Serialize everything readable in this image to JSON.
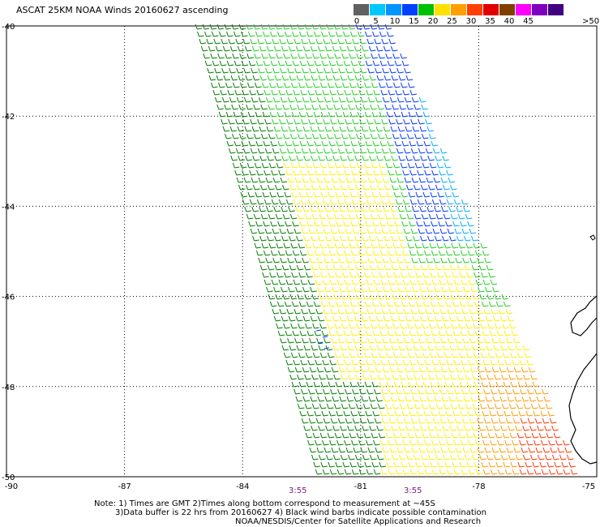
{
  "title": "ASCAT 25KM NOAA Winds 20160627 ascending",
  "legend": {
    "unit_label": ">50 knots",
    "ticks": [
      "0",
      "5",
      "10",
      "15",
      "20",
      "25",
      "30",
      "35",
      "40",
      "45"
    ],
    "colors": [
      "#606060",
      "#00c8ff",
      "#0096ff",
      "#0040ff",
      "#00c000",
      "#ffe000",
      "#ffa000",
      "#ff4000",
      "#e00000",
      "#804000",
      "#ff00ff",
      "#8000c0",
      "#400080"
    ]
  },
  "axes": {
    "x_ticks": [
      "-90",
      "-87",
      "-84",
      "-81",
      "-78",
      "-75"
    ],
    "y_ticks": [
      "-40",
      "-42",
      "-44",
      "-46",
      "-48",
      "-50"
    ]
  },
  "times": [
    "3:55",
    "3:55"
  ],
  "notes": {
    "line1": "Note: 1) Times are GMT 2)Times along bottom correspond to measurement at ~45S",
    "line2": "3)Data buffer is 22 hrs from 20160627 4) Black wind barbs indicate possible contamination",
    "line3": "NOAA/NESDIS/Center for Satellite Applications and Research"
  },
  "colors": {
    "barb_dark_green": "#007a00",
    "barb_green": "#22cc22",
    "barb_yellow": "#ffee00",
    "barb_blue": "#0033ff",
    "barb_light_blue": "#00aaff",
    "barb_cyan": "#00e5ff",
    "barb_orange": "#ff9900",
    "barb_red": "#ff3300",
    "barb_black": "#000000",
    "coast": "#000000",
    "grid": "#000000"
  }
}
